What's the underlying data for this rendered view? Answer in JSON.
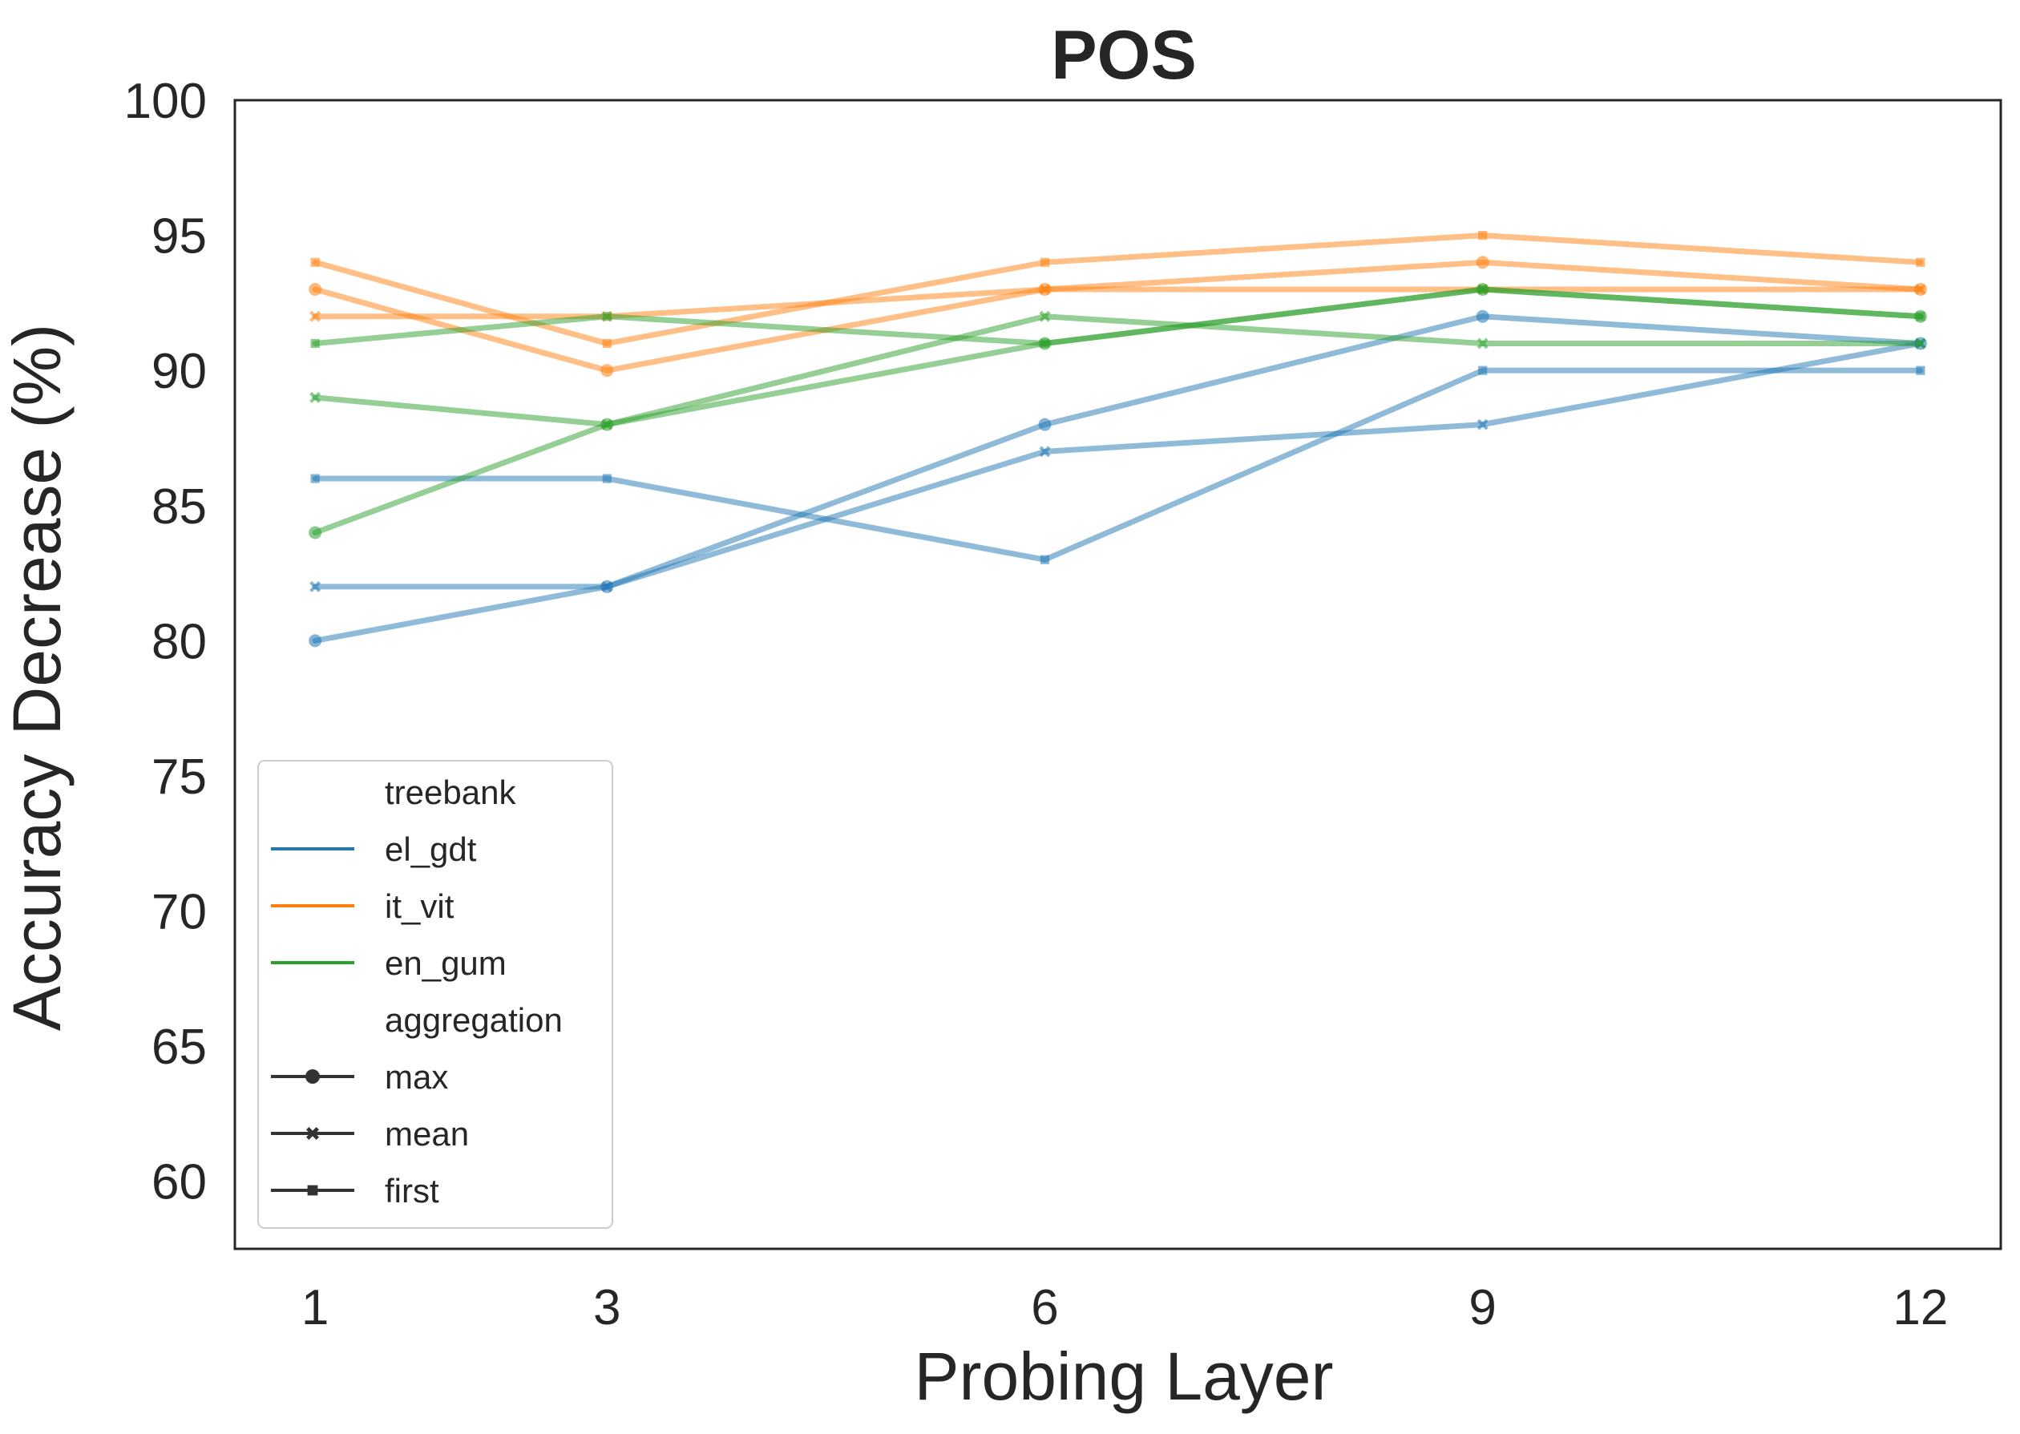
{
  "chart_data": {
    "type": "line",
    "title": "POS",
    "xlabel": "Probing Layer",
    "ylabel": "Accuracy Decrease (%)",
    "x": [
      1,
      3,
      6,
      9,
      12
    ],
    "xticks": [
      "1",
      "3",
      "6",
      "9",
      "12"
    ],
    "yticks": [
      "60",
      "65",
      "70",
      "75",
      "80",
      "85",
      "90",
      "95",
      "100"
    ],
    "xlim": [
      0.45,
      12.55
    ],
    "ylim": [
      57.5,
      100
    ],
    "grid": false,
    "legend_position": "lower-left",
    "legend": {
      "hue_title": "treebank",
      "hue_entries": [
        {
          "name": "el_gdt",
          "color": "#1f77b4"
        },
        {
          "name": "it_vit",
          "color": "#ff7f0e"
        },
        {
          "name": "en_gum",
          "color": "#2ca02c"
        }
      ],
      "style_title": "aggregation",
      "style_entries": [
        {
          "name": "max",
          "marker": "circle"
        },
        {
          "name": "mean",
          "marker": "x"
        },
        {
          "name": "first",
          "marker": "square"
        }
      ]
    },
    "series": [
      {
        "treebank": "el_gdt",
        "aggregation": "max",
        "color": "#1f77b4",
        "marker": "circle",
        "values": [
          80,
          82,
          88,
          92,
          91
        ]
      },
      {
        "treebank": "el_gdt",
        "aggregation": "mean",
        "color": "#1f77b4",
        "marker": "x",
        "values": [
          82,
          82,
          87,
          88,
          91
        ]
      },
      {
        "treebank": "el_gdt",
        "aggregation": "first",
        "color": "#1f77b4",
        "marker": "square",
        "values": [
          86,
          86,
          83,
          90,
          90
        ]
      },
      {
        "treebank": "it_vit",
        "aggregation": "max",
        "color": "#ff7f0e",
        "marker": "circle",
        "values": [
          93,
          90,
          93,
          94,
          93
        ]
      },
      {
        "treebank": "it_vit",
        "aggregation": "mean",
        "color": "#ff7f0e",
        "marker": "x",
        "values": [
          92,
          92,
          93,
          93,
          93
        ]
      },
      {
        "treebank": "it_vit",
        "aggregation": "first",
        "color": "#ff7f0e",
        "marker": "square",
        "values": [
          94,
          91,
          94,
          95,
          94
        ]
      },
      {
        "treebank": "en_gum",
        "aggregation": "max",
        "color": "#2ca02c",
        "marker": "circle",
        "values": [
          84,
          88,
          91,
          93,
          92
        ]
      },
      {
        "treebank": "en_gum",
        "aggregation": "mean",
        "color": "#2ca02c",
        "marker": "x",
        "values": [
          89,
          88,
          92,
          91,
          91
        ]
      },
      {
        "treebank": "en_gum",
        "aggregation": "first",
        "color": "#2ca02c",
        "marker": "square",
        "values": [
          91,
          92,
          91,
          93,
          92
        ]
      }
    ]
  }
}
